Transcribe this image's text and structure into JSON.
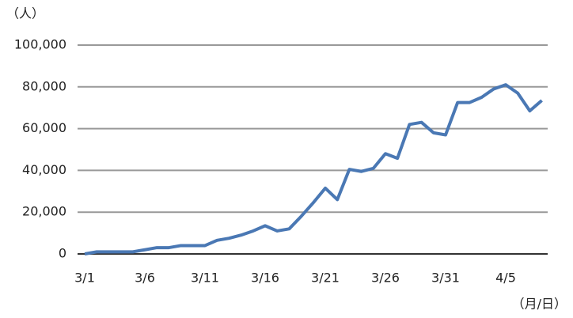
{
  "chart_data": {
    "type": "line",
    "y_unit": "（人）",
    "x_unit": "（月/日）",
    "categories": [
      "3/1",
      null,
      null,
      null,
      null,
      "3/6",
      null,
      null,
      null,
      null,
      "3/11",
      null,
      null,
      null,
      null,
      "3/16",
      null,
      null,
      null,
      null,
      "3/21",
      null,
      null,
      null,
      null,
      "3/26",
      null,
      null,
      null,
      null,
      "3/31",
      null,
      null,
      null,
      null,
      "4/5",
      null,
      null,
      null
    ],
    "values": [
      0,
      1000,
      1000,
      1000,
      1000,
      2000,
      3000,
      3000,
      4000,
      4000,
      4000,
      6500,
      7500,
      9000,
      11000,
      13500,
      11000,
      12000,
      18000,
      24500,
      31500,
      26000,
      40500,
      39500,
      41000,
      48000,
      45800,
      62000,
      63000,
      58000,
      57000,
      72500,
      72500,
      75000,
      79000,
      81000,
      77000,
      68500,
      73500
    ],
    "color": "#4a78b4",
    "ylim": [
      0,
      100000
    ],
    "yticks": [
      0,
      {
        "value": 20000,
        "label": "20,000"
      },
      {
        "value": 40000,
        "label": "40,000"
      },
      {
        "value": 60000,
        "label": "60,000"
      },
      {
        "value": 80000,
        "label": "80,000"
      },
      {
        "value": 100000,
        "label": "100,000"
      }
    ],
    "grid": true
  }
}
